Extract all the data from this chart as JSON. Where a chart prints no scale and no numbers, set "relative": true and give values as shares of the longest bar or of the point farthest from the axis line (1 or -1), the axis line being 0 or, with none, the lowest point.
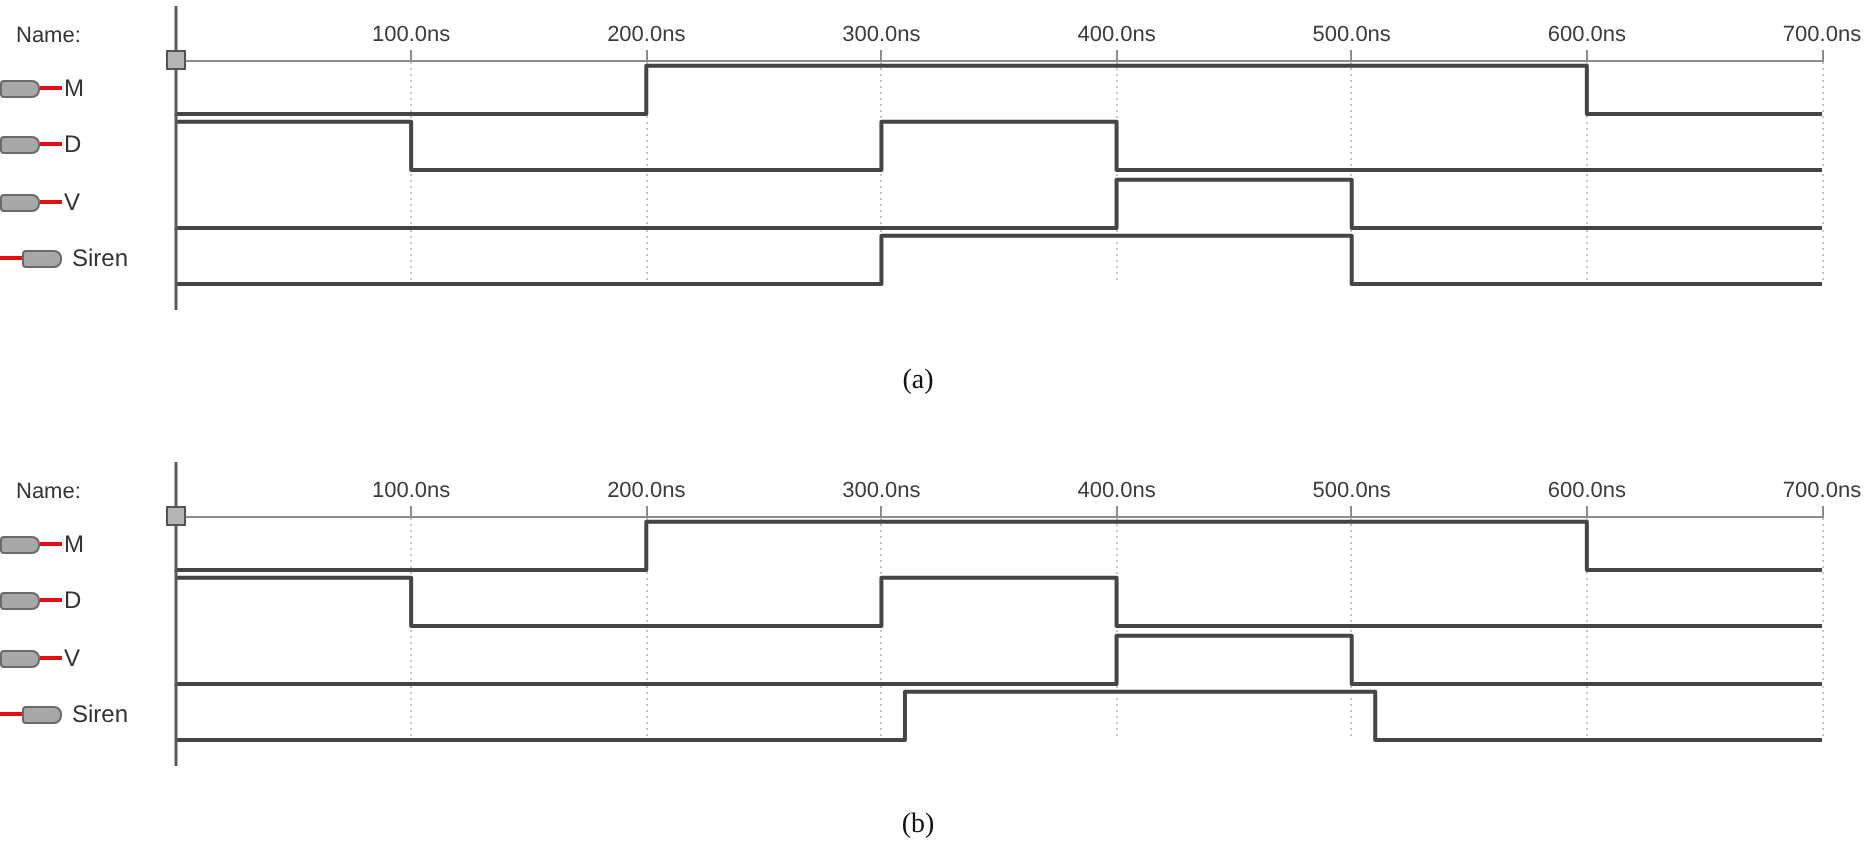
{
  "chart_data": [
    {
      "type": "step",
      "relative": true,
      "xlim": [
        0,
        700
      ],
      "xticks": [
        {
          "value": 100,
          "label": "100.0ns"
        },
        {
          "value": 200,
          "label": "200.0ns"
        },
        {
          "value": 300,
          "label": "300.0ns"
        },
        {
          "value": 400,
          "label": "400.0ns"
        },
        {
          "value": 500,
          "label": "500.0ns"
        },
        {
          "value": 600,
          "label": "600.0ns"
        },
        {
          "value": 700,
          "label": "700.0ns"
        }
      ],
      "tick_labels": "x",
      "grid": "x",
      "marker": "none",
      "annotations": [
        "Name:"
      ],
      "ref_lines": [
        {
          "axis": "x",
          "value": 0,
          "color": "#5a5a5a"
        }
      ],
      "series": [
        {
          "name": "M",
          "color": "#454545",
          "x": [
            0,
            200,
            600,
            700
          ],
          "values": [
            0,
            1,
            0,
            0
          ]
        }
      ]
    },
    {
      "type": "step",
      "relative": true,
      "xlim": [
        0,
        700
      ],
      "xticks": [
        100,
        200,
        300,
        400,
        500,
        600,
        700
      ],
      "tick_labels": false,
      "grid": "x",
      "marker": "none",
      "ref_lines": [
        {
          "axis": "x",
          "value": 0,
          "color": "#5a5a5a"
        }
      ],
      "series": [
        {
          "name": "D",
          "color": "#454545",
          "x": [
            0,
            100,
            300,
            400,
            700
          ],
          "values": [
            1,
            0,
            1,
            0,
            0
          ]
        }
      ]
    },
    {
      "type": "step",
      "relative": true,
      "xlim": [
        0,
        700
      ],
      "xticks": [
        100,
        200,
        300,
        400,
        500,
        600,
        700
      ],
      "tick_labels": false,
      "grid": "x",
      "marker": "none",
      "ref_lines": [
        {
          "axis": "x",
          "value": 0,
          "color": "#5a5a5a"
        }
      ],
      "series": [
        {
          "name": "V",
          "color": "#454545",
          "x": [
            0,
            400,
            500,
            700
          ],
          "values": [
            0,
            1,
            0,
            0
          ]
        }
      ]
    },
    {
      "type": "step",
      "relative": true,
      "xlim": [
        0,
        700
      ],
      "xticks": [
        100,
        200,
        300,
        400,
        500,
        600,
        700
      ],
      "tick_labels": false,
      "grid": "x",
      "marker": "none",
      "annotations": [
        "(a)"
      ],
      "ref_lines": [
        {
          "axis": "x",
          "value": 0,
          "color": "#5a5a5a"
        }
      ],
      "series": [
        {
          "name": "Siren",
          "color": "#454545",
          "x": [
            0,
            300,
            500,
            700
          ],
          "values": [
            0,
            1,
            0,
            0
          ]
        }
      ]
    },
    {
      "type": "step",
      "relative": true,
      "xlim": [
        0,
        700
      ],
      "xticks": [
        {
          "value": 100,
          "label": "100.0ns"
        },
        {
          "value": 200,
          "label": "200.0ns"
        },
        {
          "value": 300,
          "label": "300.0ns"
        },
        {
          "value": 400,
          "label": "400.0ns"
        },
        {
          "value": 500,
          "label": "500.0ns"
        },
        {
          "value": 600,
          "label": "600.0ns"
        },
        {
          "value": 700,
          "label": "700.0ns"
        }
      ],
      "tick_labels": "x",
      "grid": "x",
      "marker": "none",
      "annotations": [
        "Name:"
      ],
      "ref_lines": [
        {
          "axis": "x",
          "value": 0,
          "color": "#5a5a5a"
        }
      ],
      "series": [
        {
          "name": "M",
          "color": "#454545",
          "x": [
            0,
            200,
            600,
            700
          ],
          "values": [
            0,
            1,
            0,
            0
          ]
        }
      ]
    },
    {
      "type": "step",
      "relative": true,
      "xlim": [
        0,
        700
      ],
      "xticks": [
        100,
        200,
        300,
        400,
        500,
        600,
        700
      ],
      "tick_labels": false,
      "grid": "x",
      "marker": "none",
      "ref_lines": [
        {
          "axis": "x",
          "value": 0,
          "color": "#5a5a5a"
        }
      ],
      "series": [
        {
          "name": "D",
          "color": "#454545",
          "x": [
            0,
            100,
            300,
            400,
            700
          ],
          "values": [
            1,
            0,
            1,
            0,
            0
          ]
        }
      ]
    },
    {
      "type": "step",
      "relative": true,
      "xlim": [
        0,
        700
      ],
      "xticks": [
        100,
        200,
        300,
        400,
        500,
        600,
        700
      ],
      "tick_labels": false,
      "grid": "x",
      "marker": "none",
      "ref_lines": [
        {
          "axis": "x",
          "value": 0,
          "color": "#5a5a5a"
        }
      ],
      "series": [
        {
          "name": "V",
          "color": "#454545",
          "x": [
            0,
            400,
            500,
            700
          ],
          "values": [
            0,
            1,
            0,
            0
          ]
        }
      ]
    },
    {
      "type": "step",
      "relative": true,
      "xlim": [
        0,
        700
      ],
      "xticks": [
        100,
        200,
        300,
        400,
        500,
        600,
        700
      ],
      "tick_labels": false,
      "grid": "x",
      "marker": "none",
      "annotations": [
        "(b)"
      ],
      "ref_lines": [
        {
          "axis": "x",
          "value": 0,
          "color": "#5a5a5a"
        }
      ],
      "series": [
        {
          "name": "Siren",
          "color": "#454545",
          "x": [
            0,
            310,
            510,
            700
          ],
          "values": [
            0,
            1,
            0,
            0
          ]
        }
      ]
    }
  ]
}
